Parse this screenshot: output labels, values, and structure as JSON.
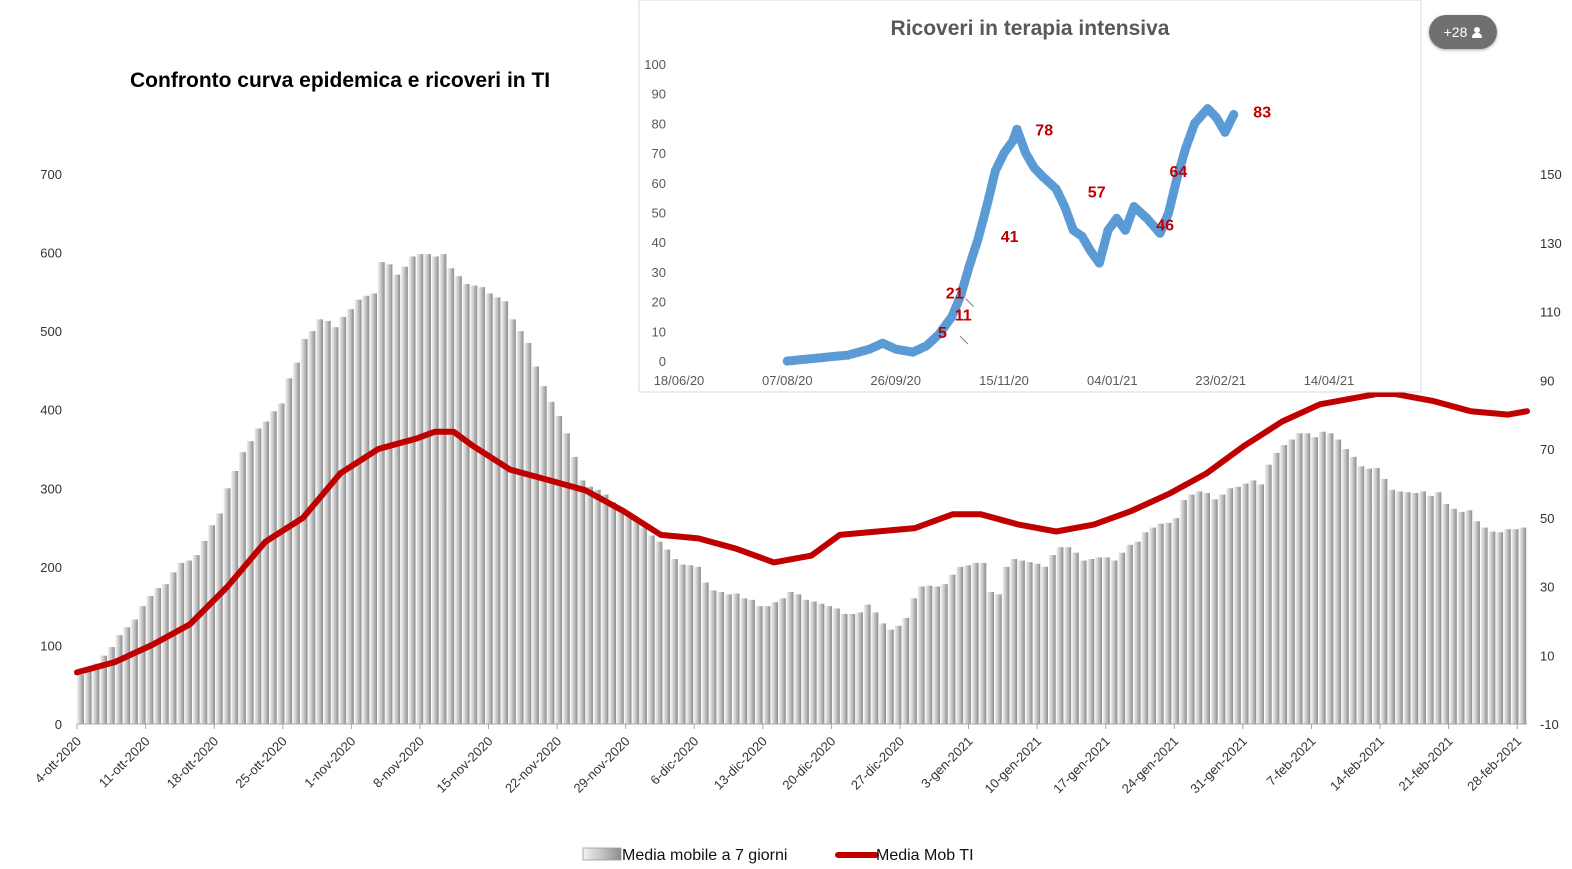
{
  "participants_badge": {
    "label": "+28",
    "icon": "person-icon"
  },
  "chart_data": [
    {
      "type": "bar",
      "title": "Confronto curva epidemica e ricoveri in TI",
      "ylim_left": [
        0,
        700
      ],
      "yticks_left": [
        "0",
        "100",
        "200",
        "300",
        "400",
        "500",
        "600",
        "700"
      ],
      "ylim_right": [
        -10,
        150
      ],
      "yticks_right": [
        "-10",
        "10",
        "30",
        "50",
        "70",
        "90",
        "110",
        "130",
        "150"
      ],
      "x_start": "4-ott-2020",
      "x_end": "28-feb-2021",
      "x_tick_labels": [
        "4-ott-2020",
        "11-ott-2020",
        "18-ott-2020",
        "25-ott-2020",
        "1-nov-2020",
        "8-nov-2020",
        "15-nov-2020",
        "22-nov-2020",
        "29-nov-2020",
        "6-dic-2020",
        "13-dic-2020",
        "20-dic-2020",
        "27-dic-2020",
        "3-gen-2021",
        "10-gen-2021",
        "17-gen-2021",
        "24-gen-2021",
        "31-gen-2021",
        "7-feb-2021",
        "14-feb-2021",
        "21-feb-2021",
        "28-feb-2021"
      ],
      "bars_color": "#bfbfbf",
      "line_color": "#c00000",
      "legend": [
        "Media mobile a 7 giorni",
        "Media Mob TI"
      ],
      "series": [
        {
          "name": "Media mobile a 7 giorni",
          "axis": "left",
          "values": [
            63,
            69,
            77,
            87,
            98,
            113,
            123,
            133,
            150,
            163,
            173,
            178,
            193,
            205,
            208,
            215,
            233,
            253,
            268,
            300,
            322,
            346,
            360,
            376,
            385,
            398,
            408,
            440,
            460,
            490,
            500,
            515,
            513,
            505,
            518,
            528,
            540,
            545,
            548,
            588,
            585,
            572,
            582,
            595,
            598,
            598,
            595,
            598,
            580,
            570,
            560,
            558,
            556,
            548,
            543,
            538,
            515,
            500,
            485,
            455,
            430,
            410,
            392,
            370,
            340,
            310,
            302,
            298,
            292,
            282,
            275,
            268,
            258,
            250,
            240,
            232,
            222,
            210,
            203,
            202,
            200,
            180,
            170,
            168,
            165,
            166,
            160,
            158,
            150,
            150,
            155,
            160,
            168,
            165,
            158,
            156,
            153,
            150,
            147,
            140,
            140,
            142,
            152,
            142,
            128,
            120,
            125,
            135,
            160,
            175,
            176,
            175,
            178,
            190,
            200,
            202,
            205,
            205,
            168,
            165,
            200,
            210,
            208,
            206,
            204,
            200,
            215,
            225,
            225,
            218,
            208,
            210,
            212,
            212,
            208,
            218,
            228,
            232,
            244,
            250,
            255,
            256,
            262,
            285,
            292,
            296,
            294,
            286,
            292,
            300,
            302,
            306,
            310,
            305,
            330,
            345,
            355,
            362,
            370,
            370,
            365,
            372,
            370,
            362,
            350,
            340,
            328,
            325,
            326,
            312,
            298,
            296,
            295,
            294,
            296,
            290,
            295,
            280,
            274,
            270,
            272,
            258,
            250,
            245,
            244,
            248,
            248,
            250
          ]
        },
        {
          "name": "Media Mob TI",
          "axis": "right",
          "points": [
            [
              0,
              5
            ],
            [
              8,
              8
            ],
            [
              16,
              13
            ],
            [
              24,
              19
            ],
            [
              32,
              30
            ],
            [
              40,
              43
            ],
            [
              48,
              50
            ],
            [
              56,
              63
            ],
            [
              64,
              70
            ],
            [
              72,
              73
            ],
            [
              76,
              75
            ],
            [
              80,
              75
            ],
            [
              84,
              71
            ],
            [
              92,
              64
            ],
            [
              100,
              61
            ],
            [
              108,
              58
            ],
            [
              116,
              52
            ],
            [
              124,
              45
            ],
            [
              132,
              44
            ],
            [
              140,
              41
            ],
            [
              148,
              37
            ],
            [
              156,
              39
            ],
            [
              162,
              45
            ],
            [
              170,
              46
            ],
            [
              178,
              47
            ],
            [
              186,
              51
            ],
            [
              192,
              51
            ],
            [
              200,
              48
            ],
            [
              208,
              46
            ],
            [
              216,
              48
            ],
            [
              224,
              52
            ],
            [
              232,
              57
            ],
            [
              240,
              63
            ],
            [
              248,
              71
            ],
            [
              256,
              78
            ],
            [
              264,
              83
            ],
            [
              272,
              85
            ],
            [
              276,
              86
            ],
            [
              280,
              86
            ],
            [
              288,
              84
            ],
            [
              296,
              81
            ],
            [
              304,
              80
            ],
            [
              308,
              81
            ]
          ]
        }
      ]
    },
    {
      "type": "scatter",
      "title": "Ricoveri in terapia intensiva",
      "ylim": [
        0,
        100
      ],
      "yticks": [
        "0",
        "10",
        "20",
        "30",
        "40",
        "50",
        "60",
        "70",
        "80",
        "90",
        "100"
      ],
      "x_tick_labels": [
        "18/06/20",
        "07/08/20",
        "26/09/20",
        "15/11/20",
        "04/01/21",
        "23/02/21",
        "14/04/21"
      ],
      "point_color": "#5b9bd5",
      "annotation_color": "#c00000",
      "annotations": [
        {
          "label": "5",
          "x": "22/10/20",
          "y": 5
        },
        {
          "label": "11",
          "x": "26/10/20",
          "y": 11
        },
        {
          "label": "21",
          "x": "26/10/20",
          "y": 21
        },
        {
          "label": "41",
          "x": "07/11/20",
          "y": 41
        },
        {
          "label": "78",
          "x": "23/11/20",
          "y": 78
        },
        {
          "label": "57",
          "x": "20/12/20",
          "y": 57
        },
        {
          "label": "46",
          "x": "27/01/21",
          "y": 46
        },
        {
          "label": "64",
          "x": "04/02/21",
          "y": 64
        },
        {
          "label": "83",
          "x": "05/03/21",
          "y": 83
        }
      ],
      "points": [
        [
          "07/08/20",
          0
        ],
        [
          "21/08/20",
          1
        ],
        [
          "04/09/20",
          2
        ],
        [
          "14/09/20",
          4
        ],
        [
          "20/09/20",
          6
        ],
        [
          "26/09/20",
          4
        ],
        [
          "04/10/20",
          3
        ],
        [
          "10/10/20",
          5
        ],
        [
          "16/10/20",
          9
        ],
        [
          "22/10/20",
          15
        ],
        [
          "26/10/20",
          22
        ],
        [
          "30/10/20",
          32
        ],
        [
          "03/11/20",
          41
        ],
        [
          "07/11/20",
          52
        ],
        [
          "11/11/20",
          64
        ],
        [
          "15/11/20",
          70
        ],
        [
          "19/11/20",
          74
        ],
        [
          "21/11/20",
          78
        ],
        [
          "25/11/20",
          70
        ],
        [
          "29/11/20",
          65
        ],
        [
          "03/12/20",
          62
        ],
        [
          "09/12/20",
          58
        ],
        [
          "13/12/20",
          52
        ],
        [
          "17/12/20",
          44
        ],
        [
          "21/12/20",
          42
        ],
        [
          "25/12/20",
          37
        ],
        [
          "29/12/20",
          33
        ],
        [
          "02/01/21",
          44
        ],
        [
          "06/01/21",
          48
        ],
        [
          "10/01/21",
          44
        ],
        [
          "14/01/21",
          52
        ],
        [
          "20/01/21",
          48
        ],
        [
          "26/01/21",
          43
        ],
        [
          "30/01/21",
          50
        ],
        [
          "03/02/21",
          62
        ],
        [
          "07/02/21",
          72
        ],
        [
          "11/02/21",
          80
        ],
        [
          "17/02/21",
          85
        ],
        [
          "21/02/21",
          82
        ],
        [
          "25/02/21",
          77
        ],
        [
          "27/02/21",
          80
        ],
        [
          "01/03/21",
          83
        ]
      ]
    }
  ],
  "legend": {
    "bars_label": "Media mobile a 7 giorni",
    "line_label": "Media Mob TI"
  }
}
